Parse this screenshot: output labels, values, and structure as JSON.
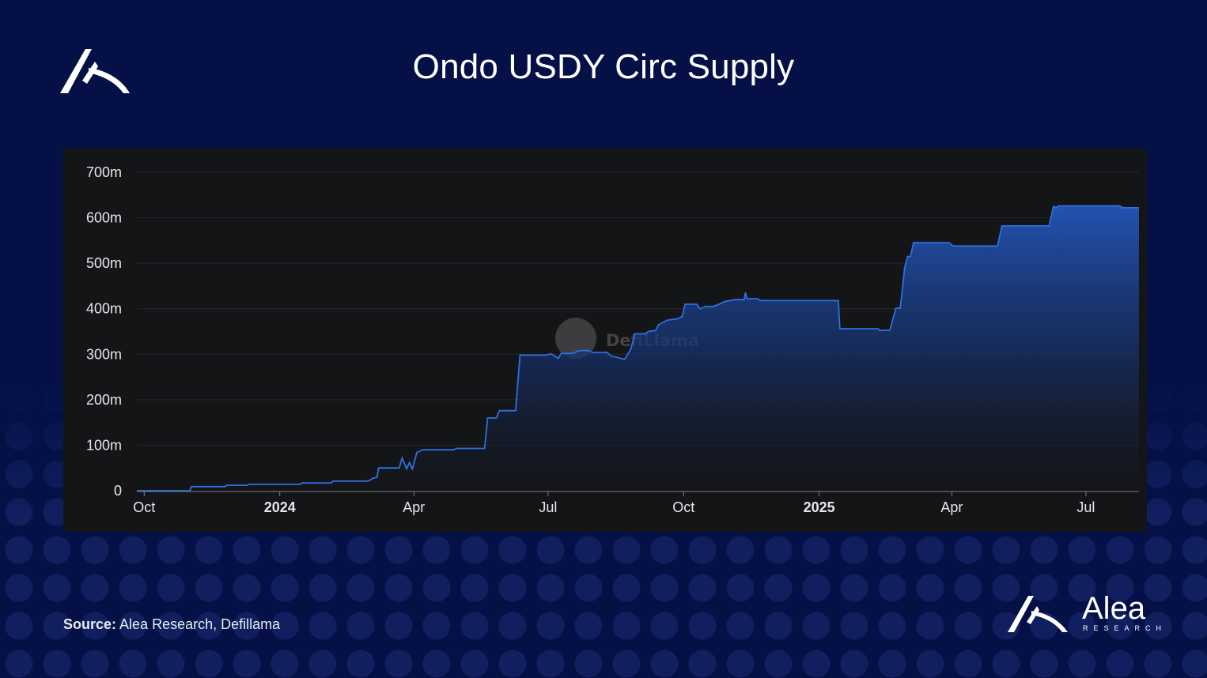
{
  "header": {
    "title": "Ondo USDY Circ Supply"
  },
  "watermark": {
    "text": "DefiLlama"
  },
  "footer": {
    "source_label": "Source:",
    "source_text": "Alea Research, Defillama",
    "brand_name": "Alea",
    "brand_sub": "RESEARCH"
  },
  "colors": {
    "background": "#051047",
    "panel": "#141517",
    "line": "#2f6fe0",
    "area_top": "#1f4fa6"
  },
  "chart_data": {
    "type": "area",
    "title": "Ondo USDY Circ Supply",
    "xlabel": "",
    "ylabel": "",
    "ylim": [
      0,
      700
    ],
    "y_unit": "m",
    "xlim": [
      "2023-09-26",
      "2025-08-06"
    ],
    "grid": true,
    "legend": "none",
    "y_ticks": [
      {
        "value": 0,
        "label": "0"
      },
      {
        "value": 100,
        "label": "100m"
      },
      {
        "value": 200,
        "label": "200m"
      },
      {
        "value": 300,
        "label": "300m"
      },
      {
        "value": 400,
        "label": "400m"
      },
      {
        "value": 500,
        "label": "500m"
      },
      {
        "value": 600,
        "label": "600m"
      },
      {
        "value": 700,
        "label": "700m"
      }
    ],
    "x_ticks": [
      {
        "date": "2023-10-01",
        "label": "Oct",
        "bold": false
      },
      {
        "date": "2024-01-01",
        "label": "2024",
        "bold": true
      },
      {
        "date": "2024-04-01",
        "label": "Apr",
        "bold": false
      },
      {
        "date": "2024-07-01",
        "label": "Jul",
        "bold": false
      },
      {
        "date": "2024-10-01",
        "label": "Oct",
        "bold": false
      },
      {
        "date": "2025-01-01",
        "label": "2025",
        "bold": true
      },
      {
        "date": "2025-04-01",
        "label": "Apr",
        "bold": false
      },
      {
        "date": "2025-07-01",
        "label": "Jul",
        "bold": false
      }
    ],
    "series": [
      {
        "points": [
          [
            "2023-09-26",
            0
          ],
          [
            "2023-11-01",
            0
          ],
          [
            "2023-11-02",
            9
          ],
          [
            "2023-11-25",
            9
          ],
          [
            "2023-11-26",
            12
          ],
          [
            "2023-12-10",
            12
          ],
          [
            "2023-12-11",
            14
          ],
          [
            "2024-01-15",
            14
          ],
          [
            "2024-01-16",
            17
          ],
          [
            "2024-02-05",
            17
          ],
          [
            "2024-02-06",
            21
          ],
          [
            "2024-03-01",
            21
          ],
          [
            "2024-03-04",
            27
          ],
          [
            "2024-03-07",
            30
          ],
          [
            "2024-03-08",
            50
          ],
          [
            "2024-03-22",
            50
          ],
          [
            "2024-03-24",
            72
          ],
          [
            "2024-03-27",
            48
          ],
          [
            "2024-03-29",
            62
          ],
          [
            "2024-03-31",
            48
          ],
          [
            "2024-04-03",
            84
          ],
          [
            "2024-04-07",
            90
          ],
          [
            "2024-04-28",
            90
          ],
          [
            "2024-04-30",
            93
          ],
          [
            "2024-05-19",
            93
          ],
          [
            "2024-05-21",
            160
          ],
          [
            "2024-05-27",
            160
          ],
          [
            "2024-05-29",
            176
          ],
          [
            "2024-06-09",
            176
          ],
          [
            "2024-06-12",
            298
          ],
          [
            "2024-06-30",
            298
          ],
          [
            "2024-07-03",
            301
          ],
          [
            "2024-07-08",
            291
          ],
          [
            "2024-07-10",
            302
          ],
          [
            "2024-07-18",
            302
          ],
          [
            "2024-07-22",
            308
          ],
          [
            "2024-07-29",
            308
          ],
          [
            "2024-07-31",
            304
          ],
          [
            "2024-08-10",
            304
          ],
          [
            "2024-08-13",
            296
          ],
          [
            "2024-08-22",
            289
          ],
          [
            "2024-08-26",
            310
          ],
          [
            "2024-08-29",
            345
          ],
          [
            "2024-09-05",
            345
          ],
          [
            "2024-09-07",
            350
          ],
          [
            "2024-09-12",
            352
          ],
          [
            "2024-09-14",
            365
          ],
          [
            "2024-09-17",
            370
          ],
          [
            "2024-09-20",
            375
          ],
          [
            "2024-09-27",
            378
          ],
          [
            "2024-09-30",
            383
          ],
          [
            "2024-10-02",
            410
          ],
          [
            "2024-10-10",
            410
          ],
          [
            "2024-10-12",
            400
          ],
          [
            "2024-10-16",
            405
          ],
          [
            "2024-10-21",
            405
          ],
          [
            "2024-10-25",
            410
          ],
          [
            "2024-10-29",
            416
          ],
          [
            "2024-11-05",
            420
          ],
          [
            "2024-11-11",
            420
          ],
          [
            "2024-11-12",
            436
          ],
          [
            "2024-11-13",
            422
          ],
          [
            "2024-11-20",
            422
          ],
          [
            "2024-11-22",
            418
          ],
          [
            "2024-12-31",
            418
          ],
          [
            "2025-01-14",
            418
          ],
          [
            "2025-01-15",
            356
          ],
          [
            "2025-02-10",
            356
          ],
          [
            "2025-02-11",
            352
          ],
          [
            "2025-02-18",
            353
          ],
          [
            "2025-02-22",
            401
          ],
          [
            "2025-02-25",
            401
          ],
          [
            "2025-02-28",
            490
          ],
          [
            "2025-03-02",
            515
          ],
          [
            "2025-03-04",
            515
          ],
          [
            "2025-03-06",
            545
          ],
          [
            "2025-03-30",
            545
          ],
          [
            "2025-04-02",
            538
          ],
          [
            "2025-05-02",
            538
          ],
          [
            "2025-05-05",
            582
          ],
          [
            "2025-06-06",
            582
          ],
          [
            "2025-06-09",
            625
          ],
          [
            "2025-06-11",
            622
          ],
          [
            "2025-06-12",
            626
          ],
          [
            "2025-07-24",
            626
          ],
          [
            "2025-07-26",
            622
          ],
          [
            "2025-08-06",
            622
          ]
        ]
      }
    ]
  }
}
